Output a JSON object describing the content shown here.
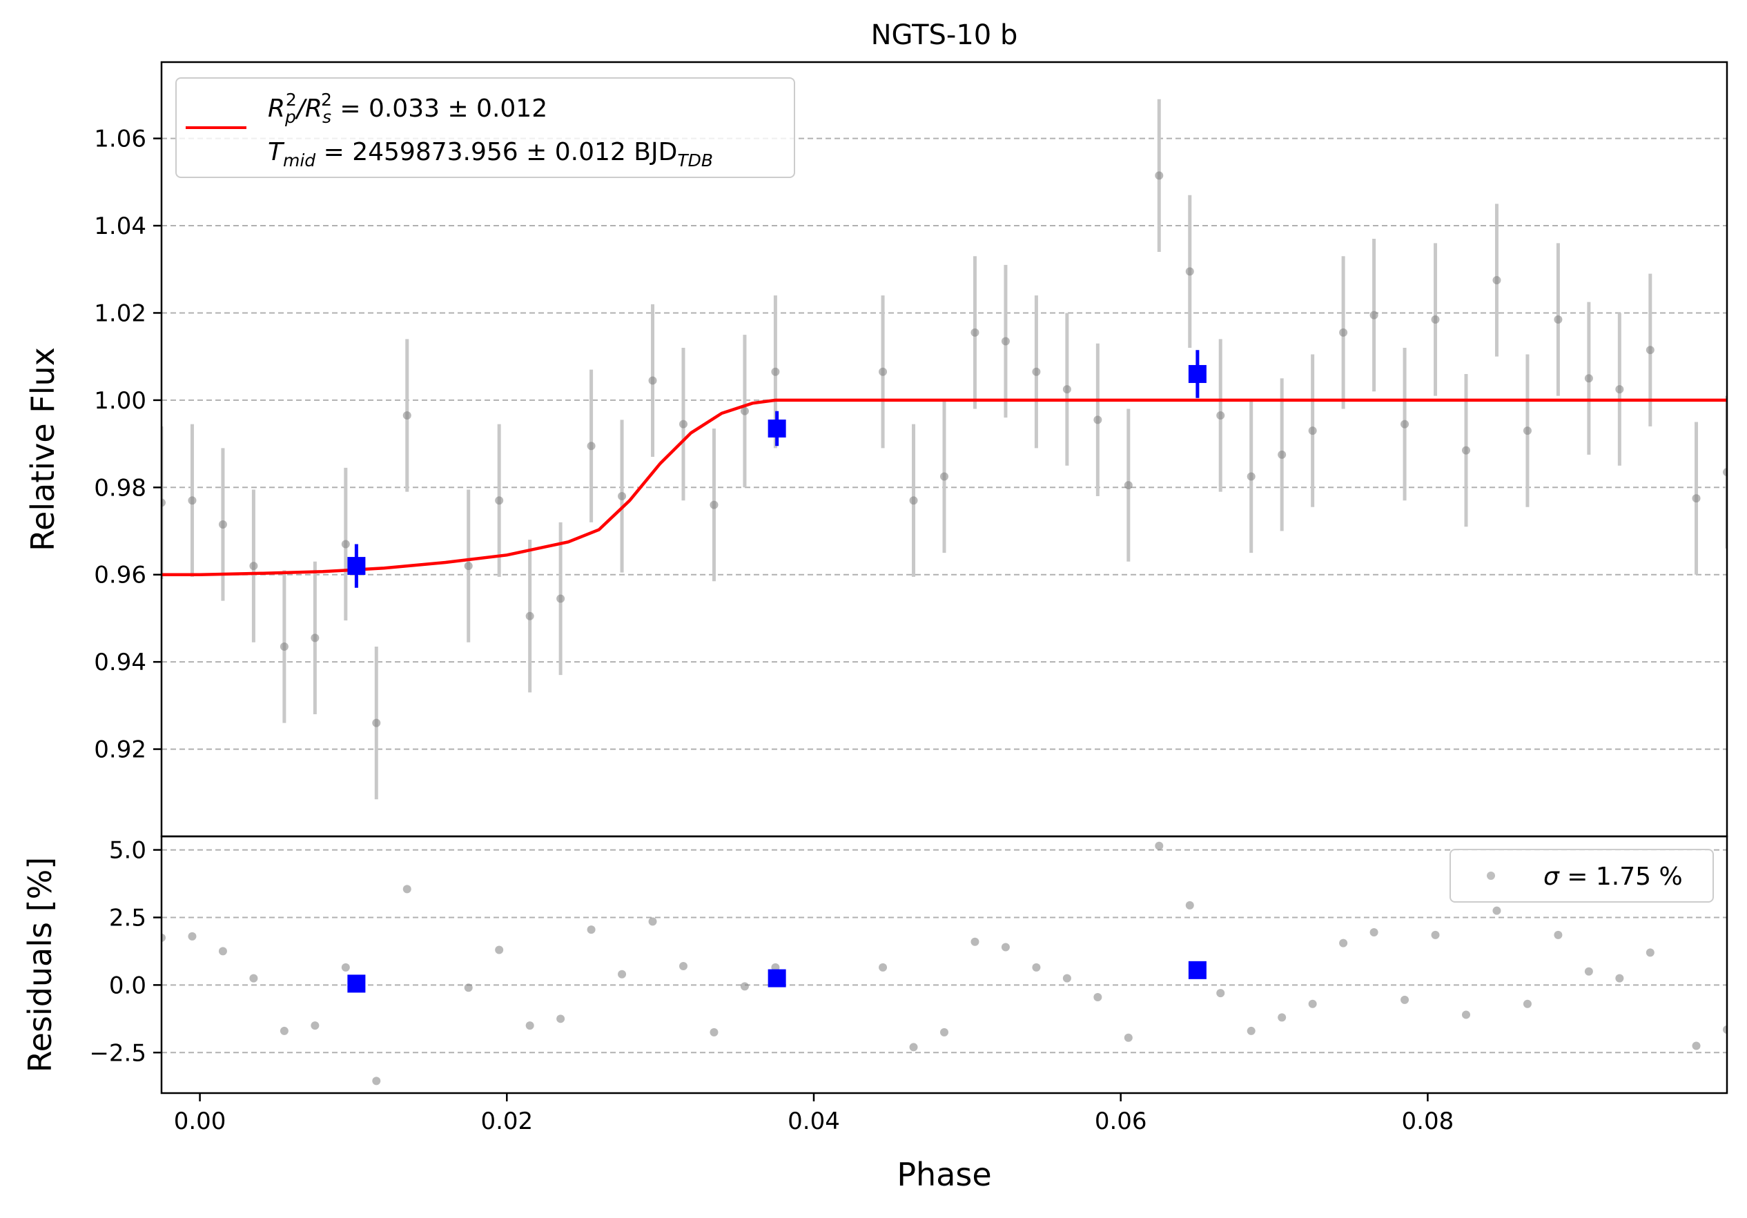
{
  "figure_title": "NGTS-10 b",
  "legend_labels": {
    "rp_main": "R",
    "rp_sub_p": "p",
    "rp_sup_2a": "2",
    "rp_slash": "/R",
    "rp_sub_s": "s",
    "rp_sup_2b": "2",
    "rp_value": " = 0.033 ± 0.012",
    "tmid_main": "T",
    "tmid_sub": "mid",
    "tmid_value": " = 2459873.956 ± 0.012 BJD",
    "tmid_unit_sub": "TDB",
    "sigma_symbol": "σ",
    "sigma_value": " = 1.75 %"
  },
  "colors": {
    "model": "#ff0000",
    "binned": "#0000ff",
    "raw": "#808080",
    "errorbar": "#c8c8c8",
    "grid": "#b0b0b0"
  },
  "chart_data": [
    {
      "type": "scatter",
      "panel": "flux",
      "title": "NGTS-10 b",
      "xlabel": "",
      "ylabel": "Relative Flux",
      "xlim": [
        -0.0025,
        0.0995
      ],
      "ylim": [
        0.9,
        1.0775
      ],
      "yticks": [
        0.92,
        0.94,
        0.96,
        0.98,
        1.0,
        1.02,
        1.04,
        1.06
      ],
      "ytick_labels": [
        "0.92",
        "0.94",
        "0.96",
        "0.98",
        "1.00",
        "1.02",
        "1.04",
        "1.06"
      ],
      "grid": "horizontal dashed",
      "legend_position": "top-left",
      "series": [
        {
          "name": "raw",
          "marker": "circle",
          "x": [
            -0.0025,
            -0.0005,
            0.0015,
            0.0035,
            0.0055,
            0.0075,
            0.0095,
            0.0115,
            0.0135,
            0.0175,
            0.0195,
            0.0215,
            0.0235,
            0.0255,
            0.0275,
            0.0295,
            0.0315,
            0.0335,
            0.0355,
            0.0375,
            0.0445,
            0.0465,
            0.0485,
            0.0505,
            0.0525,
            0.0545,
            0.0565,
            0.0585,
            0.0605,
            0.0625,
            0.0645,
            0.0665,
            0.0685,
            0.0705,
            0.0725,
            0.0745,
            0.0765,
            0.0785,
            0.0805,
            0.0825,
            0.0845,
            0.0865,
            0.0885,
            0.0905,
            0.0925,
            0.0945,
            0.0975,
            0.0995
          ],
          "y": [
            0.9765,
            0.977,
            0.9715,
            0.962,
            0.9435,
            0.9455,
            0.967,
            0.926,
            0.9965,
            0.962,
            0.977,
            0.9505,
            0.9545,
            0.9895,
            0.978,
            1.0045,
            0.9945,
            0.976,
            0.9975,
            1.0065,
            1.0065,
            0.977,
            0.9825,
            1.0155,
            1.0135,
            1.0065,
            1.0025,
            0.9955,
            0.9805,
            1.0515,
            1.0295,
            0.9965,
            0.9825,
            0.9875,
            0.993,
            1.0155,
            1.0195,
            0.9945,
            1.0185,
            0.9885,
            1.0275,
            0.993,
            1.0185,
            1.005,
            1.0025,
            1.0115,
            0.9775,
            0.9835
          ],
          "yerr": 0.0175
        },
        {
          "name": "binned",
          "marker": "square",
          "x": [
            0.0102,
            0.0376,
            0.065
          ],
          "y": [
            0.962,
            0.9935,
            1.006
          ],
          "yerr": [
            0.005,
            0.004,
            0.0055
          ]
        },
        {
          "name": "transit model",
          "line": "solid",
          "x": [
            -0.0025,
            0.0,
            0.004,
            0.008,
            0.012,
            0.016,
            0.02,
            0.024,
            0.026,
            0.028,
            0.03,
            0.032,
            0.034,
            0.036,
            0.0375,
            0.05,
            0.07,
            0.09,
            0.0995
          ],
          "y": [
            0.96,
            0.96,
            0.9603,
            0.9607,
            0.9615,
            0.9628,
            0.9645,
            0.9675,
            0.9703,
            0.977,
            0.9855,
            0.9925,
            0.997,
            0.9993,
            1.0,
            1.0,
            1.0,
            1.0,
            1.0
          ]
        }
      ]
    },
    {
      "type": "scatter",
      "panel": "residuals",
      "xlabel": "Phase",
      "ylabel": "Residuals [%]",
      "xlim": [
        -0.0025,
        0.0995
      ],
      "ylim": [
        -4.0,
        5.5
      ],
      "xticks": [
        0.0,
        0.02,
        0.04,
        0.06,
        0.08
      ],
      "xtick_labels": [
        "0.00",
        "0.02",
        "0.04",
        "0.06",
        "0.08"
      ],
      "yticks": [
        -2.5,
        0.0,
        2.5,
        5.0
      ],
      "ytick_labels": [
        "−2.5",
        "0.0",
        "2.5",
        "5.0"
      ],
      "grid": "horizontal dashed",
      "legend_position": "top-right",
      "series": [
        {
          "name": "raw residuals",
          "marker": "circle",
          "x": [
            -0.0025,
            -0.0005,
            0.0015,
            0.0035,
            0.0055,
            0.0075,
            0.0095,
            0.0115,
            0.0135,
            0.0175,
            0.0195,
            0.0215,
            0.0235,
            0.0255,
            0.0275,
            0.0295,
            0.0315,
            0.0335,
            0.0355,
            0.0375,
            0.0445,
            0.0465,
            0.0485,
            0.0505,
            0.0525,
            0.0545,
            0.0565,
            0.0585,
            0.0605,
            0.0625,
            0.0645,
            0.0665,
            0.0685,
            0.0705,
            0.0725,
            0.0745,
            0.0765,
            0.0785,
            0.0805,
            0.0825,
            0.0845,
            0.0865,
            0.0885,
            0.0905,
            0.0925,
            0.0945,
            0.0975,
            0.0995
          ],
          "y": [
            1.75,
            1.8,
            1.25,
            0.25,
            -1.7,
            -1.5,
            0.65,
            -3.55,
            3.55,
            -0.1,
            1.3,
            -1.5,
            -1.25,
            2.05,
            0.4,
            2.35,
            0.7,
            -1.75,
            -0.05,
            0.65,
            0.65,
            -2.3,
            -1.75,
            1.6,
            1.4,
            0.65,
            0.25,
            -0.45,
            -1.95,
            5.15,
            2.95,
            -0.3,
            -1.7,
            -1.2,
            -0.7,
            1.55,
            1.95,
            -0.55,
            1.85,
            -1.1,
            2.75,
            -0.7,
            1.85,
            0.5,
            0.25,
            1.2,
            -2.25,
            -1.65
          ]
        },
        {
          "name": "binned residuals",
          "marker": "square",
          "x": [
            0.0102,
            0.0376,
            0.065
          ],
          "y": [
            0.05,
            0.25,
            0.55
          ]
        }
      ]
    }
  ]
}
